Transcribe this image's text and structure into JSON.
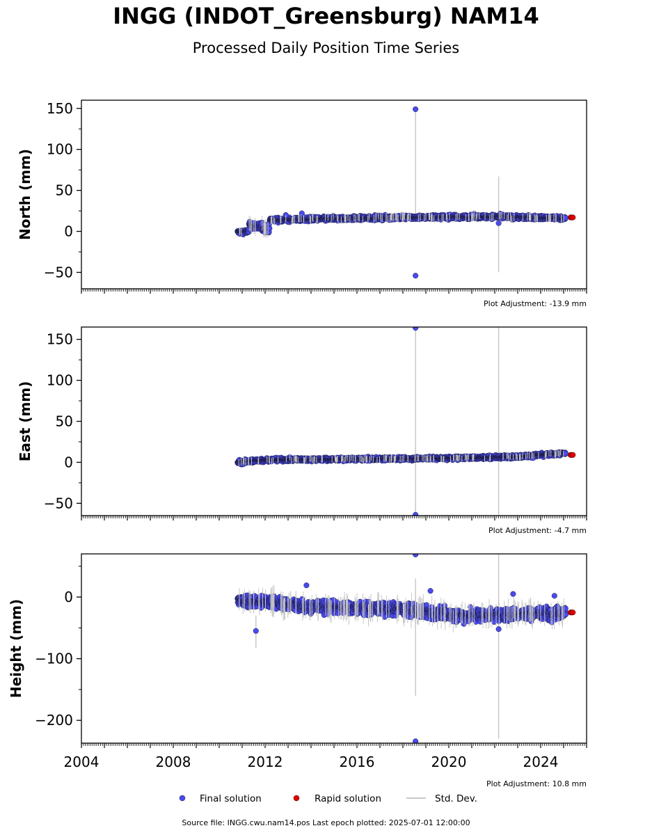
{
  "header": {
    "title": "INGG (INDOT_Greensburg) NAM14",
    "subtitle": "Processed Daily Position Time Series"
  },
  "footer": {
    "source": "Source file: INGG.cwu.nam14.pos  Last epoch plotted: 2025-07-01 12:00:00"
  },
  "colors": {
    "final": "#4a4aee",
    "rapid": "#e00000",
    "stddev": "#c8c8c8"
  },
  "chart_data": {
    "type": "scatter",
    "x_axis": {
      "range": [
        2004,
        2026
      ],
      "ticks": [
        2004,
        2008,
        2012,
        2016,
        2020,
        2024
      ],
      "tick_labels": [
        "2004",
        "2008",
        "2012",
        "2016",
        "2020",
        "2024"
      ]
    },
    "legend": {
      "placement": "bottom-center",
      "items": [
        {
          "label": "Final solution",
          "kind": "final"
        },
        {
          "label": "Rapid solution",
          "kind": "rapid"
        },
        {
          "label": "Std. Dev.",
          "kind": "stddev"
        }
      ]
    },
    "panels": [
      {
        "ylabel": "North (mm)",
        "ylim": [
          -70,
          160
        ],
        "yticks": [
          -50,
          0,
          50,
          100,
          150
        ],
        "ytick_labels": [
          "−50",
          "0",
          "50",
          "100",
          "150"
        ],
        "adjustment": "Plot Adjustment: -13.9 mm",
        "segments": [
          {
            "x0": 2010.8,
            "x1": 2011.3,
            "y0": -1,
            "y1": 0,
            "spread": 3
          },
          {
            "x0": 2011.3,
            "x1": 2012.2,
            "y0": 8,
            "y1": 3,
            "spread": 6
          },
          {
            "x0": 2012.2,
            "x1": 2014.0,
            "y0": 14,
            "y1": 15,
            "spread": 3
          },
          {
            "x0": 2014.0,
            "x1": 2018.0,
            "y0": 15,
            "y1": 17,
            "spread": 3
          },
          {
            "x0": 2018.0,
            "x1": 2022.0,
            "y0": 17,
            "y1": 18,
            "spread": 3
          },
          {
            "x0": 2022.0,
            "x1": 2025.1,
            "y0": 18,
            "y1": 16,
            "spread": 3
          }
        ],
        "outliers": [
          {
            "x": 2018.55,
            "y": 149
          },
          {
            "x": 2018.55,
            "y": -54
          },
          {
            "x": 2022.17,
            "y": 10
          },
          {
            "x": 2012.9,
            "y": 20
          },
          {
            "x": 2013.6,
            "y": 22
          }
        ],
        "stddev_bars": [
          {
            "x": 2018.55,
            "y0": 15,
            "y1": 150
          },
          {
            "x": 2022.17,
            "y0": -50,
            "y1": 67
          }
        ],
        "rapid": [
          {
            "x": 2025.3,
            "y": 17
          },
          {
            "x": 2025.35,
            "y": 17
          },
          {
            "x": 2025.4,
            "y": 17
          }
        ]
      },
      {
        "ylabel": "East (mm)",
        "ylim": [
          -65,
          165
        ],
        "yticks": [
          -50,
          0,
          50,
          100,
          150
        ],
        "ytick_labels": [
          "−50",
          "0",
          "50",
          "100",
          "150"
        ],
        "adjustment": "Plot Adjustment: -4.7 mm",
        "segments": [
          {
            "x0": 2010.8,
            "x1": 2012.0,
            "y0": 0,
            "y1": 3,
            "spread": 3
          },
          {
            "x0": 2012.0,
            "x1": 2016.0,
            "y0": 3,
            "y1": 4,
            "spread": 2.5
          },
          {
            "x0": 2016.0,
            "x1": 2020.0,
            "y0": 4,
            "y1": 5,
            "spread": 2.5
          },
          {
            "x0": 2020.0,
            "x1": 2023.0,
            "y0": 5,
            "y1": 7,
            "spread": 2.5
          },
          {
            "x0": 2023.0,
            "x1": 2025.1,
            "y0": 7,
            "y1": 11,
            "spread": 2.5
          }
        ],
        "outliers": [
          {
            "x": 2018.55,
            "y": 164
          },
          {
            "x": 2018.55,
            "y": -64
          }
        ],
        "stddev_bars": [
          {
            "x": 2018.55,
            "y0": -65,
            "y1": 165
          },
          {
            "x": 2022.17,
            "y0": -65,
            "y1": 165
          }
        ],
        "rapid": [
          {
            "x": 2025.3,
            "y": 9
          },
          {
            "x": 2025.35,
            "y": 9
          },
          {
            "x": 2025.4,
            "y": 9
          }
        ]
      },
      {
        "ylabel": "Height (mm)",
        "ylim": [
          -237,
          70
        ],
        "yticks": [
          -200,
          -100,
          0
        ],
        "ytick_labels": [
          "−200",
          "−100",
          "0"
        ],
        "adjustment": "Plot Adjustment: 10.8 mm",
        "segments": [
          {
            "x0": 2010.8,
            "x1": 2012.0,
            "y0": -5,
            "y1": -8,
            "spread": 12
          },
          {
            "x0": 2012.0,
            "x1": 2014.0,
            "y0": -8,
            "y1": -15,
            "spread": 12
          },
          {
            "x0": 2014.0,
            "x1": 2016.0,
            "y0": -15,
            "y1": -18,
            "spread": 12
          },
          {
            "x0": 2016.0,
            "x1": 2018.0,
            "y0": -18,
            "y1": -20,
            "spread": 12
          },
          {
            "x0": 2018.0,
            "x1": 2020.5,
            "y0": -20,
            "y1": -30,
            "spread": 12
          },
          {
            "x0": 2020.5,
            "x1": 2023.0,
            "y0": -30,
            "y1": -28,
            "spread": 12
          },
          {
            "x0": 2023.0,
            "x1": 2025.1,
            "y0": -28,
            "y1": -25,
            "spread": 12
          }
        ],
        "outliers": [
          {
            "x": 2011.6,
            "y": -55
          },
          {
            "x": 2013.8,
            "y": 19
          },
          {
            "x": 2018.55,
            "y": 69
          },
          {
            "x": 2018.55,
            "y": -234
          },
          {
            "x": 2019.2,
            "y": 10
          },
          {
            "x": 2022.17,
            "y": -52
          },
          {
            "x": 2022.8,
            "y": 5
          },
          {
            "x": 2024.6,
            "y": 2
          }
        ],
        "stddev_bars": [
          {
            "x": 2018.55,
            "y0": -160,
            "y1": 30
          },
          {
            "x": 2022.17,
            "y0": -230,
            "y1": 70
          },
          {
            "x": 2011.6,
            "y0": -83,
            "y1": -30
          }
        ],
        "rapid": [
          {
            "x": 2025.3,
            "y": -25
          },
          {
            "x": 2025.35,
            "y": -25
          },
          {
            "x": 2025.4,
            "y": -25
          }
        ]
      }
    ]
  }
}
